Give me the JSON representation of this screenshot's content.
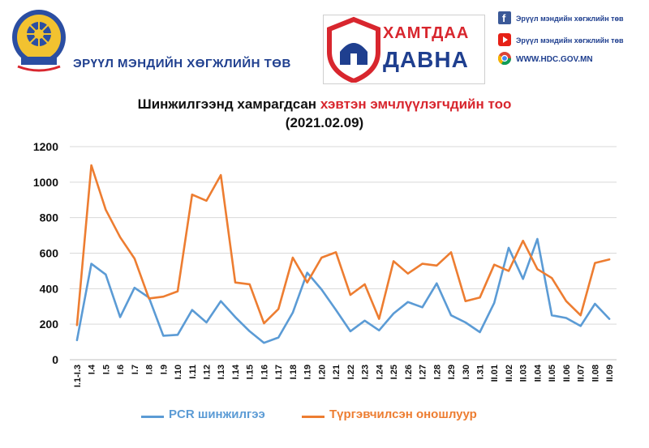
{
  "header": {
    "org_name": "ЭРҮҮЛ МЭНДИЙН ХӨГЖЛИЙН ТӨВ",
    "campaign_top": "ХАМТДАА",
    "campaign_bottom": "ДАВНА",
    "facebook_text": "Эрүүл мэндийн хөгжлийн төв",
    "youtube_text": "Эрүүл мэндийн хөгжлийн төв",
    "website_text": "WWW.HDC.GOV.MN",
    "icons": [
      "emblem-logo",
      "campaign-logo",
      "facebook-icon",
      "youtube-icon",
      "chrome-icon"
    ]
  },
  "chart_data": {
    "type": "line",
    "title_part1": "Шинжилгээнд хамрагдсан ",
    "title_part2": "хэвтэн эмчлүүлэгчдийн тоо",
    "subtitle": "(2021.02.09)",
    "categories": [
      "I.1-I.3",
      "I.4",
      "I.5",
      "I.6",
      "I.7",
      "I.8",
      "I.9",
      "I.10",
      "I.11",
      "I.12",
      "I.13",
      "I.14",
      "I.15",
      "I.16",
      "I.17",
      "I.18",
      "I.19",
      "I.20",
      "I.21",
      "I.22",
      "I.23",
      "I.24",
      "I.25",
      "I.26",
      "I.27",
      "I.28",
      "I.29",
      "I.30",
      "I.31",
      "II.01",
      "II.02",
      "II.03",
      "II.04",
      "II.05",
      "II.06",
      "II.07",
      "II.08",
      "II.09"
    ],
    "ylim": [
      0,
      1200
    ],
    "yticks": [
      0,
      200,
      400,
      600,
      800,
      1000,
      1200
    ],
    "grid": true,
    "legend_position": "bottom",
    "series": [
      {
        "name": "PCR шинжилгээ",
        "color": "#5b9bd5",
        "values": [
          110,
          540,
          480,
          240,
          405,
          350,
          135,
          140,
          280,
          210,
          330,
          240,
          160,
          95,
          125,
          265,
          490,
          395,
          280,
          160,
          220,
          165,
          260,
          325,
          295,
          430,
          250,
          210,
          155,
          320,
          630,
          455,
          680,
          250,
          235,
          190,
          315,
          230
        ]
      },
      {
        "name": "Түргэвчилсэн оношлуур",
        "color": "#ed7d31",
        "values": [
          195,
          1095,
          845,
          690,
          570,
          345,
          355,
          385,
          930,
          895,
          1040,
          435,
          425,
          205,
          285,
          575,
          435,
          575,
          605,
          365,
          425,
          230,
          555,
          485,
          540,
          530,
          605,
          330,
          350,
          535,
          500,
          670,
          510,
          460,
          330,
          250,
          545,
          565
        ]
      }
    ]
  },
  "colors": {
    "brand_blue": "#1f3f8f",
    "brand_red": "#d8262e",
    "grid": "#d9d9d9"
  }
}
